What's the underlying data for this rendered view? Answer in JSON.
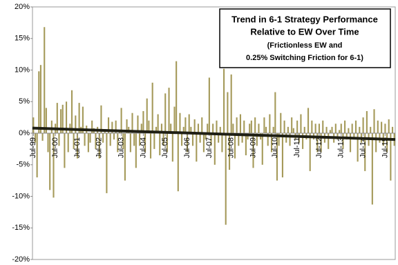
{
  "chart_data": {
    "type": "bar",
    "title": [
      "Trend in 6-1 Strategy Performance",
      "Relative to EW Over Time"
    ],
    "subtitle": [
      "(Frictionless EW and",
      "0.25% Switching Friction for 6-1)"
    ],
    "categories": [
      "Jul-99",
      null,
      null,
      null,
      null,
      null,
      null,
      null,
      null,
      null,
      null,
      null,
      "Jul-00",
      null,
      null,
      null,
      null,
      null,
      null,
      null,
      null,
      null,
      null,
      null,
      "Jul-01",
      null,
      null,
      null,
      null,
      null,
      null,
      null,
      null,
      null,
      null,
      null,
      "Jul-02",
      null,
      null,
      null,
      null,
      null,
      null,
      null,
      null,
      null,
      null,
      null,
      "Jul-03",
      null,
      null,
      null,
      null,
      null,
      null,
      null,
      null,
      null,
      null,
      null,
      "Jul-04",
      null,
      null,
      null,
      null,
      null,
      null,
      null,
      null,
      null,
      null,
      null,
      "Jul-05",
      null,
      null,
      null,
      null,
      null,
      null,
      null,
      null,
      null,
      null,
      null,
      "Jul-06",
      null,
      null,
      null,
      null,
      null,
      null,
      null,
      null,
      null,
      null,
      null,
      "Jul-07",
      null,
      null,
      null,
      null,
      null,
      null,
      null,
      null,
      null,
      null,
      null,
      "Jul-08",
      null,
      null,
      null,
      null,
      null,
      null,
      null,
      null,
      null,
      null,
      null,
      "Jul-09",
      null,
      null,
      null,
      null,
      null,
      null,
      null,
      null,
      null,
      null,
      null,
      "Jul-10",
      null,
      null,
      null,
      null,
      null,
      null,
      null,
      null,
      null,
      null,
      null,
      "Jul-11",
      null,
      null,
      null,
      null,
      null,
      null,
      null,
      null,
      null,
      null,
      null,
      "Jul-12",
      null,
      null,
      null,
      null,
      null,
      null,
      null,
      null,
      null,
      null,
      null,
      "Jul-13",
      null,
      null,
      null,
      null,
      null,
      null,
      null,
      null,
      null,
      null,
      null,
      "Jul-14",
      null,
      null,
      null,
      null,
      null,
      null,
      null,
      null,
      null,
      null,
      null,
      "Jul-15",
      null,
      null,
      null,
      null,
      null
    ],
    "values": [
      2.5,
      -1.5,
      -7,
      9.8,
      10.8,
      -1.2,
      16.8,
      4,
      -3,
      -9,
      2,
      -10.2,
      1.5,
      4.8,
      -2,
      3.8,
      4.5,
      -5.5,
      5,
      -3,
      1.5,
      6.8,
      -2.5,
      2.8,
      -4,
      4.8,
      1,
      4.2,
      -2,
      1.2,
      -3,
      -1.5,
      2,
      0.8,
      -2.5,
      1,
      -4,
      4.4,
      -1.5,
      0.5,
      -9.5,
      2.5,
      -2,
      1.8,
      -1,
      2,
      -3,
      0.5,
      4,
      -2.5,
      -7.5,
      2.2,
      1,
      -3,
      3.2,
      -2,
      -5.5,
      2.8,
      -2,
      1.5,
      3.5,
      -3,
      5.5,
      2,
      -4,
      8,
      -2.5,
      1,
      3,
      -3.5,
      1.5,
      -2,
      6.3,
      -3,
      7.2,
      1.5,
      -4.5,
      4.2,
      11.4,
      -9.2,
      3.2,
      -2,
      1,
      2.5,
      -3,
      3,
      1,
      -2,
      2.2,
      -4.5,
      1.5,
      -1.5,
      2.5,
      -3,
      -1,
      1.5,
      8.8,
      -2,
      1.5,
      -5,
      2,
      -1.5,
      1,
      -3,
      10.2,
      -14.5,
      6.5,
      -5.8,
      9.3,
      1.5,
      -4,
      2.5,
      -2,
      3,
      -1.5,
      2,
      -3.5,
      -1,
      1.5,
      2,
      -5.5,
      2.5,
      -2,
      1.5,
      -1,
      -5,
      2.5,
      1,
      -2,
      3,
      -3,
      1,
      6.5,
      -7.5,
      -2,
      3.2,
      -7,
      2,
      -1.5,
      1,
      -2,
      2.5,
      0.8,
      -1,
      2,
      -1.5,
      3,
      -2.5,
      1,
      -1,
      4,
      -6,
      2,
      -1,
      1.5,
      -3,
      1.5,
      -3,
      2,
      -1.5,
      1,
      -2.5,
      0.5,
      1,
      -1.5,
      1.5,
      -1,
      0.5,
      1.5,
      -2.5,
      2,
      -1,
      0.8,
      -3,
      1.5,
      -1,
      2,
      -4.5,
      1,
      -1.5,
      2.5,
      -6,
      3.5,
      -2,
      1,
      -11.3,
      3.8,
      -3,
      2,
      -1.5,
      1.8,
      -2,
      1.5,
      -3,
      2.2,
      -7.5,
      1,
      -2
    ],
    "color": "#a59a5a",
    "trend": {
      "values": [
        0.8,
        -1.0
      ],
      "color": "#1f1f14"
    },
    "ylim": [
      -20,
      20
    ],
    "yticks": [
      {
        "value": -20,
        "label": "-20%"
      },
      {
        "value": -15,
        "label": "-15%"
      },
      {
        "value": -10,
        "label": "-10%"
      },
      {
        "value": -5,
        "label": "-5%"
      },
      {
        "value": 0,
        "label": "0%"
      },
      {
        "value": 5,
        "label": "5%"
      },
      {
        "value": 10,
        "label": "10%"
      },
      {
        "value": 15,
        "label": "15%"
      },
      {
        "value": 20,
        "label": "20%"
      }
    ]
  }
}
